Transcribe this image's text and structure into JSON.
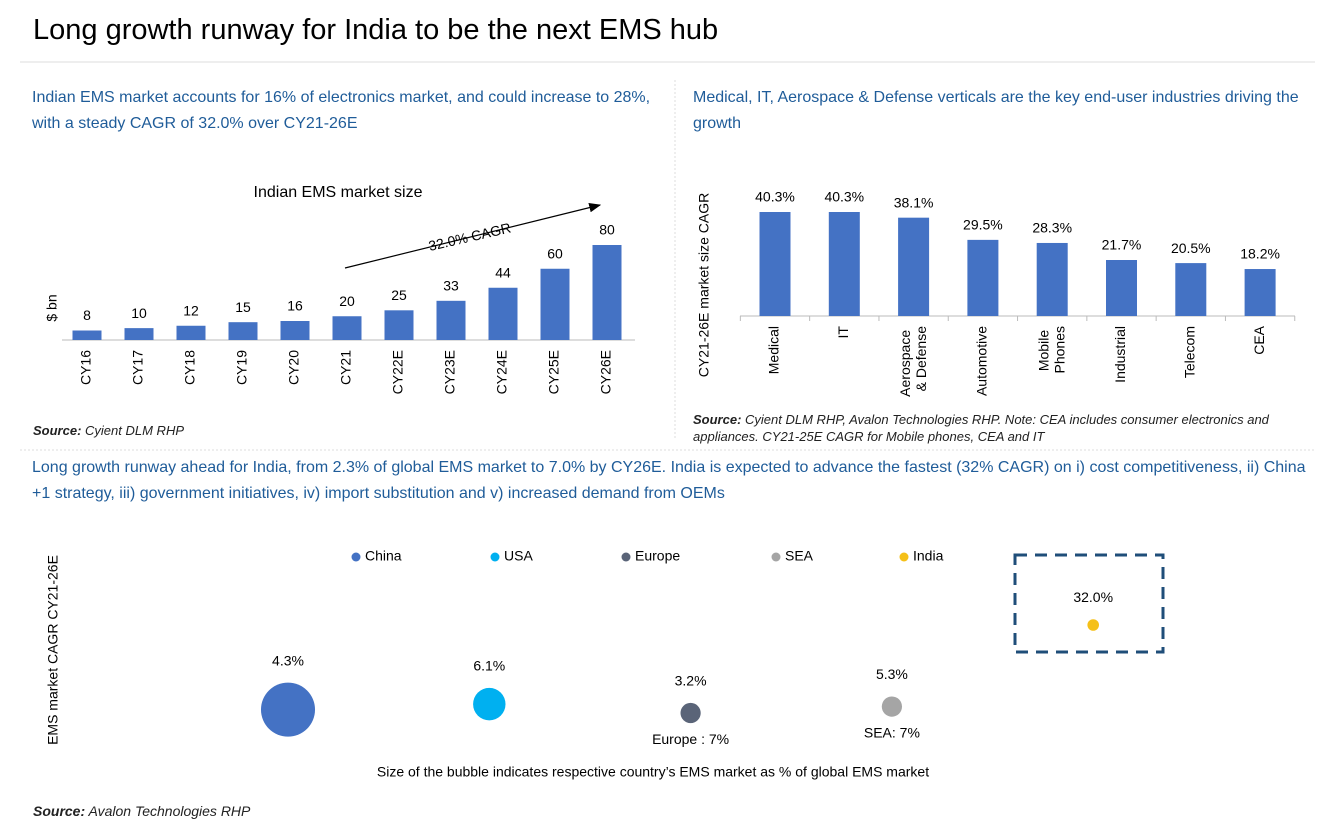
{
  "title": "Long growth runway for India to be the next EMS hub",
  "left_heading": "Indian EMS market accounts for 16% of electronics market, and could increase to 28%, with a steady CAGR of 32.0% over CY21-26E",
  "right_heading": "Medical, IT, Aerospace & Defense verticals are the key end-user industries driving the growth",
  "bottom_heading": "Long growth runway ahead for India, from 2.3% of global EMS market to 7.0% by CY26E. India is expected to advance the fastest (32% CAGR) on i) cost competitiveness, ii) China +1 strategy, iii) government initiatives, iv) import substitution and v) increased demand from OEMs",
  "source_label": "Source:",
  "left_source": "Cyient DLM RHP",
  "right_source": "Cyient DLM RHP, Avalon Technologies RHP. Note: CEA includes consumer electronics and appliances. CY21-25E CAGR for Mobile phones, CEA and IT",
  "bottom_source": "Avalon Technologies RHP",
  "chart_data": [
    {
      "type": "bar",
      "title": "Indian EMS market size",
      "y_label": "$ bn",
      "annotation": "32.0% CAGR",
      "categories": [
        "CY16",
        "CY17",
        "CY18",
        "CY19",
        "CY20",
        "CY21",
        "CY22E",
        "CY23E",
        "CY24E",
        "CY25E",
        "CY26E"
      ],
      "values": [
        8,
        10,
        12,
        15,
        16,
        20,
        25,
        33,
        44,
        60,
        80
      ],
      "color": "#4472c4"
    },
    {
      "type": "bar",
      "y_label": "CY21-26E market size CAGR",
      "categories": [
        "Medical",
        "IT",
        "Aerospace & Defense",
        "Automotive",
        "Mobile Phones",
        "Industrial",
        "Telecom",
        "CEA"
      ],
      "values": [
        40.3,
        40.3,
        38.1,
        29.5,
        28.3,
        21.7,
        20.5,
        18.2
      ],
      "value_labels": [
        "40.3%",
        "40.3%",
        "38.1%",
        "29.5%",
        "28.3%",
        "21.7%",
        "20.5%",
        "18.2%"
      ],
      "color": "#4472c4"
    },
    {
      "type": "bubble",
      "y_label": "EMS market CAGR CY21-26E",
      "x_label": "Size of the bubble indicates respective country’s EMS market as % of global EMS market",
      "series": [
        {
          "name": "China",
          "color": "#4472c4",
          "values": [
            4.3
          ],
          "value_labels": [
            "4.3%"
          ],
          "sizes": [
            50
          ]
        },
        {
          "name": "USA",
          "color": "#00b0f0",
          "values": [
            6.1
          ],
          "value_labels": [
            "6.1%"
          ],
          "sizes": [
            18
          ]
        },
        {
          "name": "Europe",
          "color": "#5a6478",
          "values": [
            3.2
          ],
          "value_labels": [
            "3.2%"
          ],
          "sizes": [
            7
          ],
          "size_labels": [
            "Europe : 7%"
          ]
        },
        {
          "name": "SEA",
          "color": "#a5a5a5",
          "values": [
            5.3
          ],
          "value_labels": [
            "5.3%"
          ],
          "sizes": [
            7
          ],
          "size_labels": [
            "SEA: 7%"
          ]
        },
        {
          "name": "India",
          "color": "#f5c018",
          "values": [
            32.0
          ],
          "value_labels": [
            "32.0%"
          ],
          "sizes": [
            2.3
          ]
        }
      ]
    }
  ]
}
